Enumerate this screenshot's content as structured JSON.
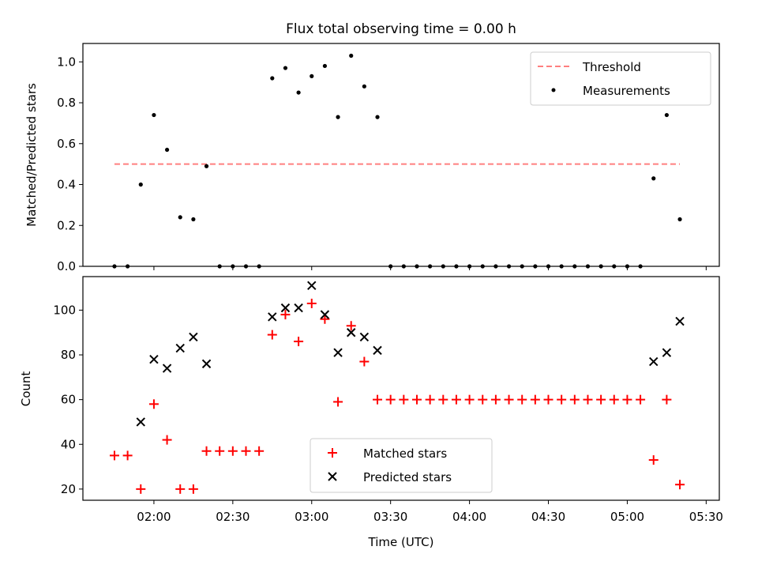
{
  "chart_data": [
    {
      "type": "scatter",
      "title": "Flux total observing time = 0.00 h",
      "xlabel": "",
      "ylabel": "Matched/Predicted stars",
      "xlim": [
        "01:33",
        "05:35"
      ],
      "ylim": [
        0,
        1.09
      ],
      "y_ticks": [
        "0.0",
        "0.2",
        "0.4",
        "0.6",
        "0.8",
        "1.0"
      ],
      "x_tick_labels_shown": false,
      "legend_position": "top-right",
      "threshold": {
        "name": "Threshold",
        "value": 0.5,
        "x_start": "01:45",
        "x_end": "05:20",
        "color": "#ff7f7f",
        "style": "dashed"
      },
      "series": [
        {
          "name": "Measurements",
          "color": "#000000",
          "marker": "dot",
          "points": [
            [
              "01:45",
              0.0
            ],
            [
              "01:50",
              0.0
            ],
            [
              "01:55",
              0.4
            ],
            [
              "02:00",
              0.74
            ],
            [
              "02:05",
              0.57
            ],
            [
              "02:10",
              0.24
            ],
            [
              "02:15",
              0.23
            ],
            [
              "02:20",
              0.49
            ],
            [
              "02:25",
              0.0
            ],
            [
              "02:30",
              0.0
            ],
            [
              "02:35",
              0.0
            ],
            [
              "02:40",
              0.0
            ],
            [
              "02:45",
              0.92
            ],
            [
              "02:50",
              0.97
            ],
            [
              "02:55",
              0.85
            ],
            [
              "03:00",
              0.93
            ],
            [
              "03:05",
              0.98
            ],
            [
              "03:10",
              0.73
            ],
            [
              "03:15",
              1.03
            ],
            [
              "03:20",
              0.88
            ],
            [
              "03:25",
              0.73
            ],
            [
              "03:30",
              0.0
            ],
            [
              "03:35",
              0.0
            ],
            [
              "03:40",
              0.0
            ],
            [
              "03:45",
              0.0
            ],
            [
              "03:50",
              0.0
            ],
            [
              "03:55",
              0.0
            ],
            [
              "04:00",
              0.0
            ],
            [
              "04:05",
              0.0
            ],
            [
              "04:10",
              0.0
            ],
            [
              "04:15",
              0.0
            ],
            [
              "04:20",
              0.0
            ],
            [
              "04:25",
              0.0
            ],
            [
              "04:30",
              0.0
            ],
            [
              "04:35",
              0.0
            ],
            [
              "04:40",
              0.0
            ],
            [
              "04:45",
              0.0
            ],
            [
              "04:50",
              0.0
            ],
            [
              "04:55",
              0.0
            ],
            [
              "05:00",
              0.0
            ],
            [
              "05:05",
              0.0
            ],
            [
              "05:10",
              0.43
            ],
            [
              "05:15",
              0.74
            ],
            [
              "05:20",
              0.23
            ]
          ]
        }
      ]
    },
    {
      "type": "scatter",
      "title": "",
      "xlabel": "Time (UTC)",
      "ylabel": "Count",
      "xlim": [
        "01:33",
        "05:35"
      ],
      "ylim": [
        15,
        115
      ],
      "x_ticks": [
        "02:00",
        "02:30",
        "03:00",
        "03:30",
        "04:00",
        "04:30",
        "05:00",
        "05:30"
      ],
      "y_ticks": [
        "20",
        "40",
        "60",
        "80",
        "100"
      ],
      "legend_position": "lower-center",
      "series": [
        {
          "name": "Matched stars",
          "color": "#ff0000",
          "marker": "plus",
          "points": [
            [
              "01:45",
              35
            ],
            [
              "01:50",
              35
            ],
            [
              "01:55",
              20
            ],
            [
              "02:00",
              58
            ],
            [
              "02:05",
              42
            ],
            [
              "02:10",
              20
            ],
            [
              "02:15",
              20
            ],
            [
              "02:20",
              37
            ],
            [
              "02:25",
              37
            ],
            [
              "02:30",
              37
            ],
            [
              "02:35",
              37
            ],
            [
              "02:40",
              37
            ],
            [
              "02:45",
              89
            ],
            [
              "02:50",
              98
            ],
            [
              "02:55",
              86
            ],
            [
              "03:00",
              103
            ],
            [
              "03:05",
              96
            ],
            [
              "03:10",
              59
            ],
            [
              "03:15",
              93
            ],
            [
              "03:20",
              77
            ],
            [
              "03:25",
              60
            ],
            [
              "03:30",
              60
            ],
            [
              "03:35",
              60
            ],
            [
              "03:40",
              60
            ],
            [
              "03:45",
              60
            ],
            [
              "03:50",
              60
            ],
            [
              "03:55",
              60
            ],
            [
              "04:00",
              60
            ],
            [
              "04:05",
              60
            ],
            [
              "04:10",
              60
            ],
            [
              "04:15",
              60
            ],
            [
              "04:20",
              60
            ],
            [
              "04:25",
              60
            ],
            [
              "04:30",
              60
            ],
            [
              "04:35",
              60
            ],
            [
              "04:40",
              60
            ],
            [
              "04:45",
              60
            ],
            [
              "04:50",
              60
            ],
            [
              "04:55",
              60
            ],
            [
              "05:00",
              60
            ],
            [
              "05:05",
              60
            ],
            [
              "05:10",
              33
            ],
            [
              "05:15",
              60
            ],
            [
              "05:20",
              22
            ]
          ]
        },
        {
          "name": "Predicted stars",
          "color": "#000000",
          "marker": "x",
          "points": [
            [
              "01:55",
              50
            ],
            [
              "02:00",
              78
            ],
            [
              "02:05",
              74
            ],
            [
              "02:10",
              83
            ],
            [
              "02:15",
              88
            ],
            [
              "02:20",
              76
            ],
            [
              "02:45",
              97
            ],
            [
              "02:50",
              101
            ],
            [
              "02:55",
              101
            ],
            [
              "03:00",
              111
            ],
            [
              "03:05",
              98
            ],
            [
              "03:10",
              81
            ],
            [
              "03:15",
              90
            ],
            [
              "03:20",
              88
            ],
            [
              "03:25",
              82
            ],
            [
              "05:10",
              77
            ],
            [
              "05:15",
              81
            ],
            [
              "05:20",
              95
            ]
          ]
        }
      ]
    }
  ]
}
